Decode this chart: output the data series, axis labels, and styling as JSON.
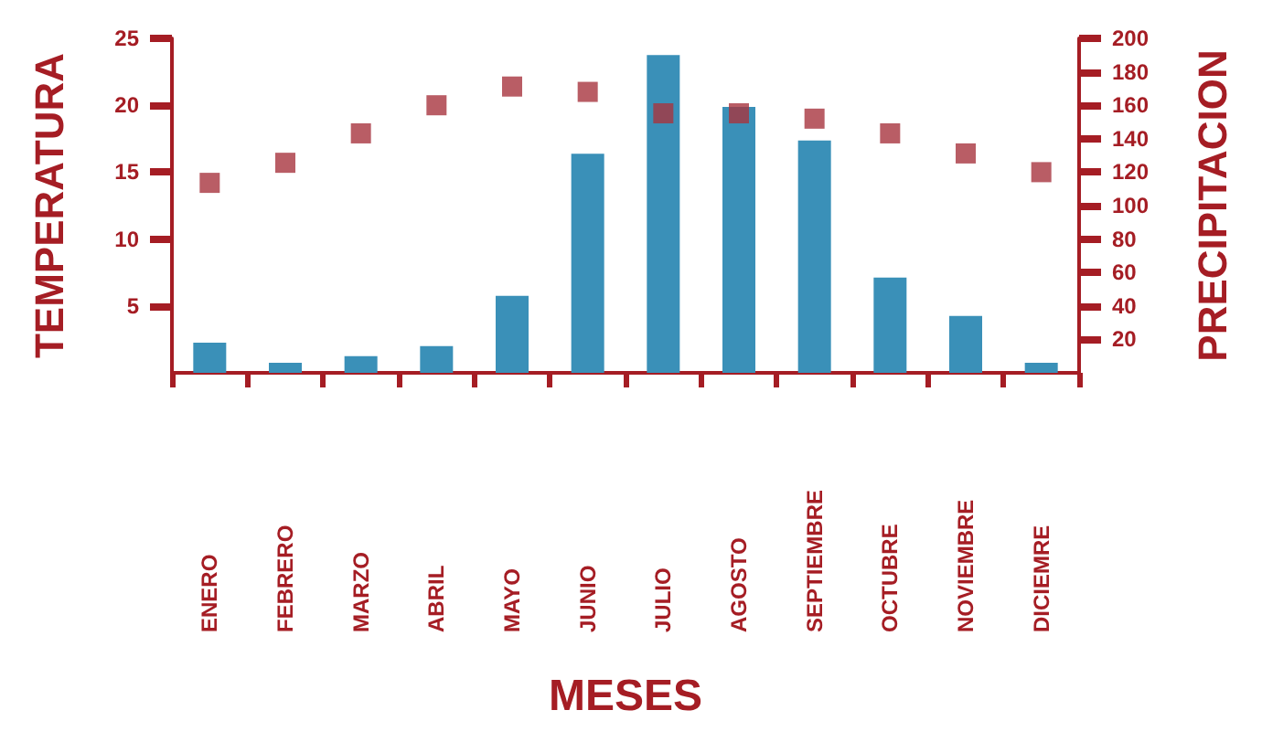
{
  "chart_data": {
    "type": "bar",
    "xlabel": "MESES",
    "ylabel": "TEMPERATURA",
    "y2label": "PRECIPITACION",
    "categories": [
      "ENERO",
      "FEBRERO",
      "MARZO",
      "ABRIL",
      "MAYO",
      "JUNIO",
      "JULIO",
      "AGOSTO",
      "SEPTIEMBRE",
      "OCTUBRE",
      "NOVIEMBRE",
      "DICIEMRE"
    ],
    "series": [
      {
        "axis": "y2",
        "color": "#3a90b8",
        "values": [
          18,
          6,
          10,
          16,
          46,
          131,
          190,
          159,
          139,
          57,
          34,
          6
        ]
      },
      {
        "type": "scatter",
        "axis": "y",
        "color": "#a8343f",
        "marker": "square",
        "x": [
          "ENERO",
          "FEBRERO",
          "MARZO",
          "ABRIL",
          "MAYO",
          "JUNIO",
          "JULIO",
          "AGOSTO",
          "SEPTIEMBRE",
          "OCTUBRE",
          "NOVIEMBRE",
          "DICIEMRE"
        ],
        "values": [
          14.2,
          15.7,
          17.9,
          20.0,
          21.4,
          21.0,
          19.4,
          19.4,
          19.0,
          17.9,
          16.4,
          15.0
        ]
      }
    ],
    "ylim": [
      0,
      25
    ],
    "yticks": [
      5,
      10,
      15,
      20,
      25
    ],
    "y2lim": [
      0,
      200
    ],
    "y2ticks": [
      20,
      40,
      60,
      80,
      100,
      120,
      140,
      160,
      180,
      200
    ],
    "grid": false
  }
}
